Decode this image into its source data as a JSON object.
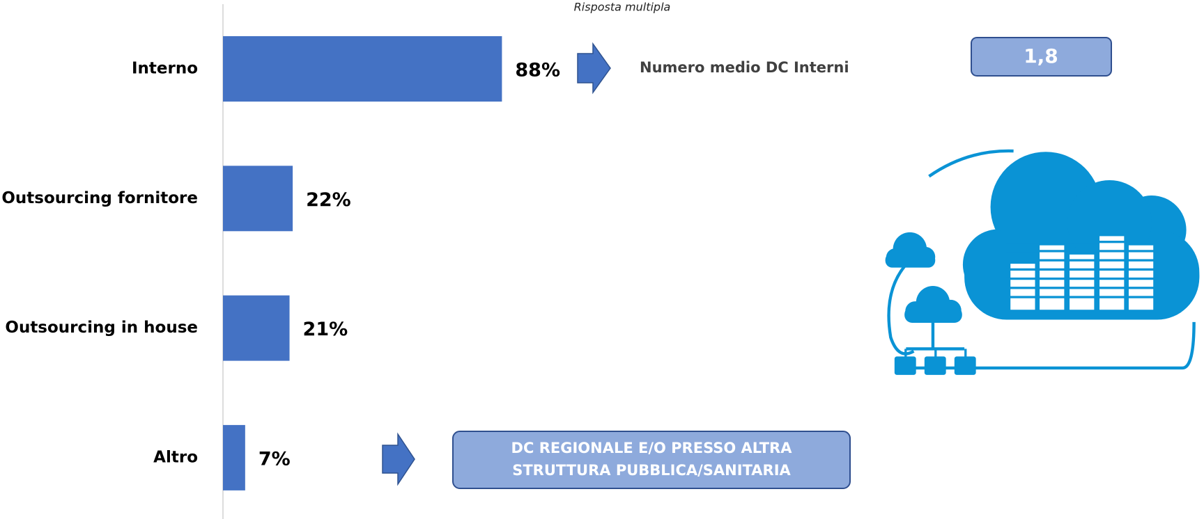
{
  "chart_data": {
    "type": "bar",
    "orientation": "horizontal",
    "subtitle": "Risposta multipla",
    "categories": [
      "Interno",
      "Outsourcing fornitore",
      "Outsourcing in house",
      "Altro"
    ],
    "values": [
      88,
      22,
      21,
      7
    ],
    "value_labels": [
      "88%",
      "22%",
      "21%",
      "7%"
    ],
    "color": "#4472c4",
    "annotations": {
      "interno_label": "Numero medio DC Interni",
      "interno_value": "1,8",
      "altro_lines": [
        "DC REGIONALE E/O PRESSO ALTRA",
        "STRUTTURA PUBBLICA/SANITARIA"
      ]
    }
  }
}
